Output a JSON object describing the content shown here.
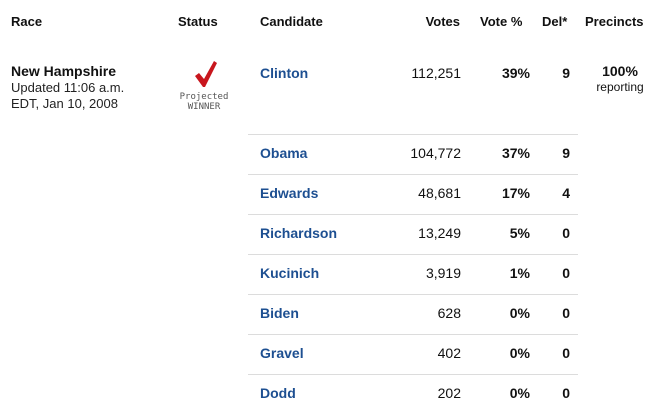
{
  "headers": {
    "race": "Race",
    "status": "Status",
    "candidate": "Candidate",
    "votes": "Votes",
    "vote_pct": "Vote %",
    "del": "Del*",
    "precincts": "Precincts"
  },
  "race": {
    "name": "New Hampshire",
    "updated_line1": "Updated 11:06 a.m.",
    "updated_line2": "EDT, Jan 10, 2008"
  },
  "status": {
    "icon": "checkmark-icon",
    "line1": "Projected",
    "line2": "WINNER",
    "check_color": "#c8161d"
  },
  "precincts": {
    "pct": "100%",
    "label": "reporting"
  },
  "colors": {
    "link": "#1d4f91",
    "separator": "#dcdcdc"
  },
  "candidates": [
    {
      "name": "Clinton",
      "votes": "112,251",
      "pct": "39%",
      "del": "9"
    },
    {
      "name": "Obama",
      "votes": "104,772",
      "pct": "37%",
      "del": "9"
    },
    {
      "name": "Edwards",
      "votes": "48,681",
      "pct": "17%",
      "del": "4"
    },
    {
      "name": "Richardson",
      "votes": "13,249",
      "pct": "5%",
      "del": "0"
    },
    {
      "name": "Kucinich",
      "votes": "3,919",
      "pct": "1%",
      "del": "0"
    },
    {
      "name": "Biden",
      "votes": "628",
      "pct": "0%",
      "del": "0"
    },
    {
      "name": "Gravel",
      "votes": "402",
      "pct": "0%",
      "del": "0"
    },
    {
      "name": "Dodd",
      "votes": "202",
      "pct": "0%",
      "del": "0"
    }
  ]
}
